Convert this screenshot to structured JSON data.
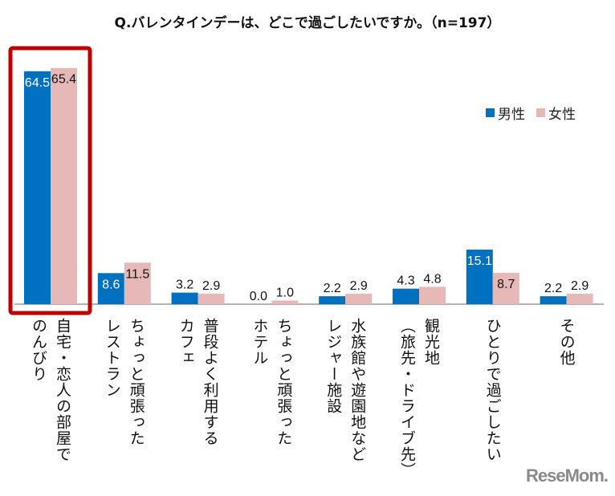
{
  "chart_data": {
    "type": "bar",
    "title": "Q.バレンタインデーは、どこで過ごしたいですか。（n=197）",
    "categories": [
      "自宅・恋人の部屋で\nのんびり",
      "ちょっと頑張った\nレストラン",
      "普段よく利用する\nカフェ",
      "ちょっと頑張った\nホテル",
      "水族館や遊園地など\nレジャー施設",
      "観光地\n（旅先・ドライブ先）",
      "ひとりで過ごしたい",
      "その他"
    ],
    "series": [
      {
        "name": "男性",
        "color": "#0070c0",
        "values": [
          64.5,
          8.6,
          3.2,
          0.0,
          2.2,
          4.3,
          15.1,
          2.2
        ]
      },
      {
        "name": "女性",
        "color": "#e6b9b8",
        "values": [
          65.4,
          11.5,
          2.9,
          1.0,
          2.9,
          4.8,
          8.7,
          2.9
        ]
      }
    ],
    "ylim": [
      0,
      70
    ],
    "grid": false,
    "legend": "top-right",
    "highlight": {
      "category_index": 0,
      "color": "#c00000"
    }
  },
  "logo": "ReseMom"
}
